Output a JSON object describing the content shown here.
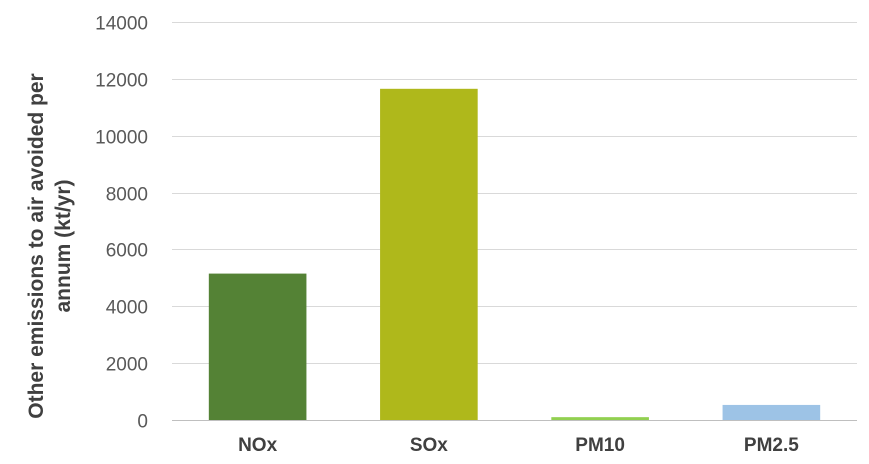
{
  "chart_data": {
    "type": "bar",
    "categories": [
      "NOx",
      "SOx",
      "PM10",
      "PM2.5"
    ],
    "values": [
      5150,
      11650,
      100,
      530
    ],
    "colors": [
      "#548235",
      "#afb81b",
      "#92d050",
      "#9dc3e6"
    ],
    "ylabel_lines": [
      "Other emissions to air avoided per",
      "annum (kt/yr)"
    ],
    "ylim": [
      0,
      14000
    ],
    "yticks": [
      0,
      2000,
      4000,
      6000,
      8000,
      10000,
      12000,
      14000
    ],
    "grid": true
  }
}
